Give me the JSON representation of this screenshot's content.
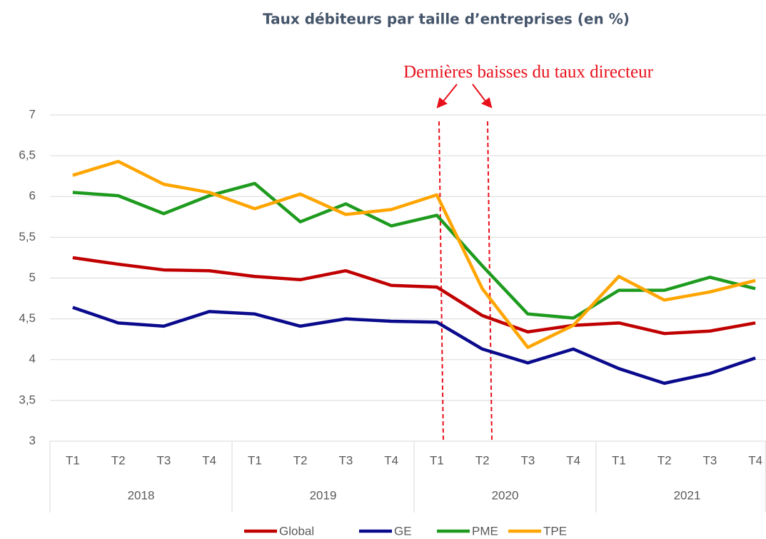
{
  "chart_data": {
    "type": "line",
    "title": "Taux débiteurs par taille d’entreprises (en %)",
    "annotation": "Dernières baisses du taux directeur",
    "categories": [
      "T1",
      "T2",
      "T3",
      "T4",
      "T1",
      "T2",
      "T3",
      "T4",
      "T1",
      "T2",
      "T3",
      "T4",
      "T1",
      "T2",
      "T3",
      "T4"
    ],
    "year_groups": [
      "2018",
      "2019",
      "2020",
      "2021"
    ],
    "series": [
      {
        "name": "Global",
        "color": "#c00000",
        "values": [
          5.25,
          5.17,
          5.1,
          5.09,
          5.02,
          4.98,
          5.09,
          4.91,
          4.89,
          4.54,
          4.34,
          4.42,
          4.45,
          4.32,
          4.35,
          4.45
        ]
      },
      {
        "name": "GE",
        "color": "#0a0a8c",
        "values": [
          4.64,
          4.45,
          4.41,
          4.59,
          4.56,
          4.41,
          4.5,
          4.47,
          4.46,
          4.13,
          3.96,
          4.13,
          3.89,
          3.71,
          3.83,
          4.02
        ]
      },
      {
        "name": "PME",
        "color": "#1e9b1e",
        "values": [
          6.05,
          6.01,
          5.79,
          6.01,
          6.16,
          5.69,
          5.91,
          5.64,
          5.77,
          5.15,
          4.56,
          4.51,
          4.85,
          4.85,
          5.01,
          4.87
        ]
      },
      {
        "name": "TPE",
        "color": "#ffa500",
        "values": [
          6.26,
          6.43,
          6.15,
          6.05,
          5.85,
          6.03,
          5.78,
          5.84,
          6.02,
          4.87,
          4.15,
          4.42,
          5.02,
          4.73,
          4.83,
          4.97
        ]
      }
    ],
    "ylim": [
      3,
      7
    ],
    "yticks": [
      3,
      {
        "value": 3.5,
        "label": "3,5"
      },
      4,
      {
        "value": 4.5,
        "label": "4,5"
      },
      5,
      {
        "value": 5.5,
        "label": "5,5"
      },
      6,
      {
        "value": 6.5,
        "label": "6,5"
      },
      7
    ],
    "grid": true,
    "legend": "bottom"
  }
}
